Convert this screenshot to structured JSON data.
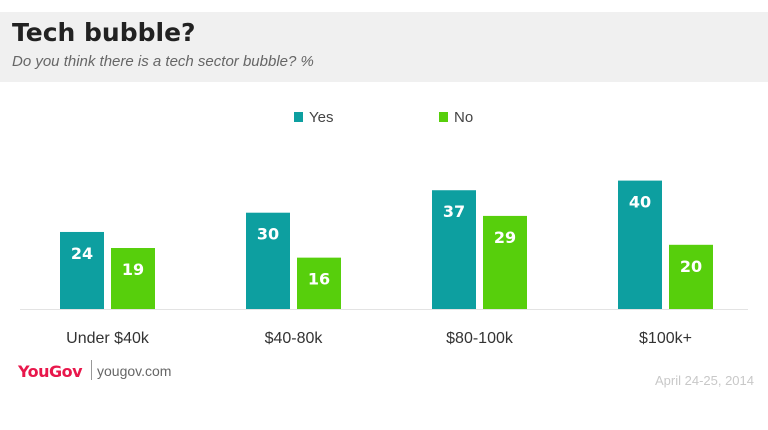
{
  "header": {
    "title": "Tech bubble?",
    "subtitle": "Do you think there is a tech sector bubble? %"
  },
  "footer": {
    "brand": "YouGov",
    "url": "yougov.com",
    "date": "April 24-25, 2014"
  },
  "colors": {
    "yes": "#0d9fa0",
    "no": "#57cf0c",
    "label_text": "#ffffff",
    "axis_text": "#333333"
  },
  "chart_data": {
    "type": "bar",
    "title": "Tech bubble?",
    "subtitle": "Do you think there is a tech sector bubble? %",
    "categories": [
      "Under $40k",
      "$40-80k",
      "$80-100k",
      "$100k+"
    ],
    "series": [
      {
        "name": "Yes",
        "values": [
          24,
          30,
          37,
          40
        ]
      },
      {
        "name": "No",
        "values": [
          19,
          16,
          29,
          20
        ]
      }
    ],
    "ylim": [
      0,
      45
    ],
    "grid": false,
    "legend": "top-center",
    "data_labels": true
  }
}
